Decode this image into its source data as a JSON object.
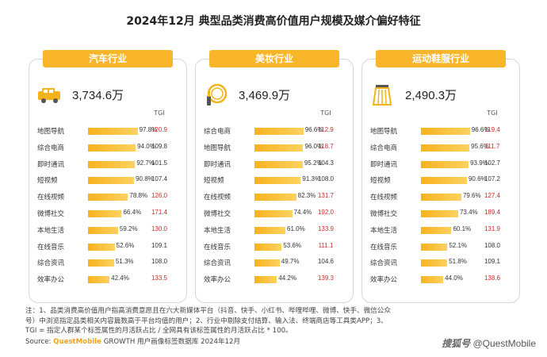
{
  "title": "2024年12月 典型品类消费高价值用户规模及媒介偏好特征",
  "tgi_header": "TGI",
  "tgi_threshold": 110,
  "colors": {
    "accent": "#f9b62a",
    "high_tgi": "#d62828",
    "normal_tgi": "#333333"
  },
  "chart_data": [
    {
      "type": "bar",
      "title": "汽车行业",
      "icon": "car-icon",
      "total": "3,734.6万",
      "unit": "%",
      "xlim": [
        0,
        100
      ],
      "categories": [
        "地图导航",
        "综合电商",
        "即时通讯",
        "短视频",
        "在线视频",
        "微博社交",
        "本地生活",
        "在线音乐",
        "综合资讯",
        "效率办公"
      ],
      "values": [
        97.8,
        94.0,
        92.7,
        90.8,
        78.8,
        66.4,
        59.2,
        52.6,
        51.3,
        42.4
      ],
      "tgi": [
        120.9,
        109.8,
        101.5,
        107.4,
        126.0,
        171.4,
        130.0,
        109.1,
        108.0,
        133.5
      ]
    },
    {
      "type": "bar",
      "title": "美妆行业",
      "icon": "cosmetics-icon",
      "total": "3,469.9万",
      "unit": "%",
      "xlim": [
        0,
        100
      ],
      "categories": [
        "综合电商",
        "地图导航",
        "即时通讯",
        "短视频",
        "在线视频",
        "微博社交",
        "本地生活",
        "在线音乐",
        "综合资讯",
        "效率办公"
      ],
      "values": [
        96.6,
        96.0,
        95.2,
        91.3,
        82.3,
        74.4,
        61.0,
        53.6,
        49.7,
        44.2
      ],
      "tgi": [
        112.9,
        118.7,
        104.3,
        108.0,
        131.7,
        192.0,
        133.9,
        111.1,
        104.6,
        139.3
      ]
    },
    {
      "type": "bar",
      "title": "运动鞋服行业",
      "icon": "sportswear-icon",
      "total": "2,490.3万",
      "unit": "%",
      "xlim": [
        0,
        100
      ],
      "categories": [
        "地图导航",
        "综合电商",
        "即时通讯",
        "短视频",
        "在线视频",
        "微博社交",
        "本地生活",
        "在线音乐",
        "综合资讯",
        "效率办公"
      ],
      "values": [
        96.6,
        95.6,
        93.9,
        90.6,
        79.6,
        73.4,
        60.1,
        52.1,
        51.8,
        44.0
      ],
      "tgi": [
        119.4,
        111.7,
        102.7,
        107.2,
        127.4,
        189.4,
        131.9,
        108.0,
        109.1,
        138.6
      ]
    }
  ],
  "footnote": {
    "line1": "注：1、品类消费高价值用户指高消费意愿且在六大新媒体平台（抖音、快手、小红书、哔哩哔哩、微博、快手、微信公众",
    "line2": "号）中浏览指定品类相关内容篇数高于平台均值的用户；2、行业中剔除支付结算、输入法、终端商店等工具类APP；3、",
    "line3": "TGI = 指定人群某个标签属性的月活跃占比 / 全网具有该标签属性的月活跃占比 * 100。"
  },
  "source": {
    "prefix": "Source: ",
    "brand": "QuestMobile",
    "text": " GROWTH 用户画像标签数据库 2024年12月"
  },
  "watermark": {
    "logo": "搜狐号",
    "handle": "@QuestMobile"
  }
}
